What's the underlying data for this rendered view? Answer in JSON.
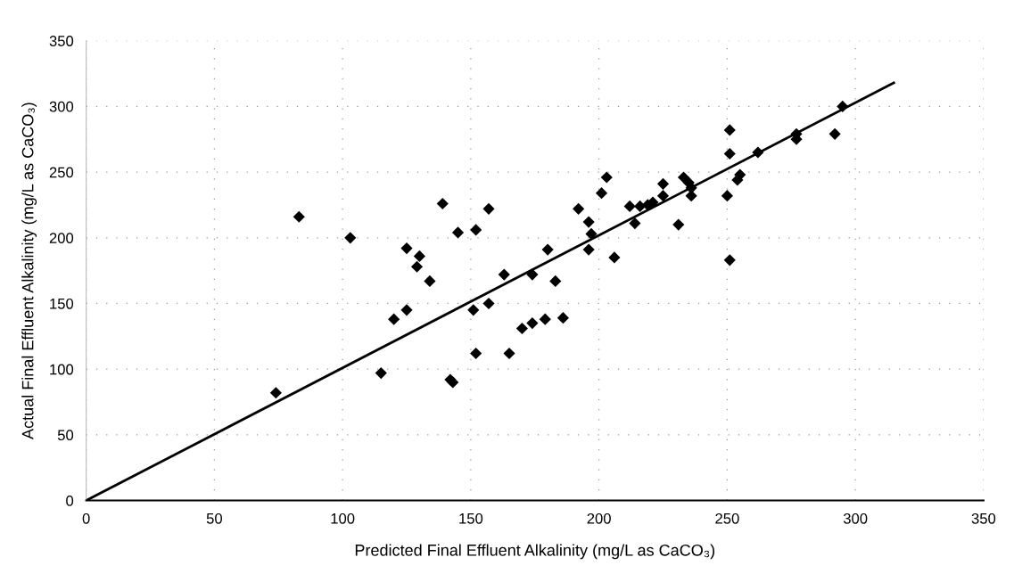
{
  "chart_data": {
    "type": "scatter",
    "xlabel": "Predicted Final Effluent Alkalinity (mg/L as CaCO₃)",
    "ylabel": "Actual Final Effluent Alkalinity (mg/L as CaCO₃)",
    "xlim": [
      0,
      350
    ],
    "xticks": [
      0,
      50,
      100,
      150,
      200,
      250,
      300,
      350
    ],
    "ylim": [
      0,
      350
    ],
    "yticks": [
      0,
      50,
      100,
      150,
      200,
      250,
      300,
      350
    ],
    "grid": true,
    "series": [
      {
        "marker": "diamond",
        "color": "#000000",
        "x": [
          74,
          83,
          103,
          115,
          120,
          125,
          125,
          129,
          130,
          134,
          139,
          142,
          143,
          145,
          151,
          152,
          152,
          157,
          157,
          163,
          165,
          170,
          174,
          174,
          179,
          180,
          183,
          186,
          192,
          196,
          196,
          197,
          201,
          203,
          206,
          212,
          214,
          216,
          219,
          221,
          225,
          225,
          231,
          233,
          235,
          236,
          236,
          250,
          251,
          251,
          251,
          254,
          255,
          262,
          277,
          277,
          292,
          295
        ],
        "values": [
          82,
          216,
          200,
          97,
          138,
          192,
          145,
          178,
          186,
          167,
          226,
          92,
          90,
          204,
          145,
          206,
          112,
          222,
          150,
          172,
          112,
          131,
          135,
          172,
          138,
          191,
          167,
          139,
          222,
          212,
          191,
          203,
          234,
          246,
          185,
          224,
          211,
          224,
          225,
          227,
          241,
          232,
          210,
          246,
          242,
          238,
          232,
          232,
          183,
          282,
          264,
          244,
          248,
          265,
          279,
          275,
          279,
          300
        ]
      },
      {
        "type": "line",
        "marker": "none",
        "color": "#000000",
        "x": [
          0,
          315
        ],
        "values": [
          0,
          318
        ]
      }
    ]
  }
}
